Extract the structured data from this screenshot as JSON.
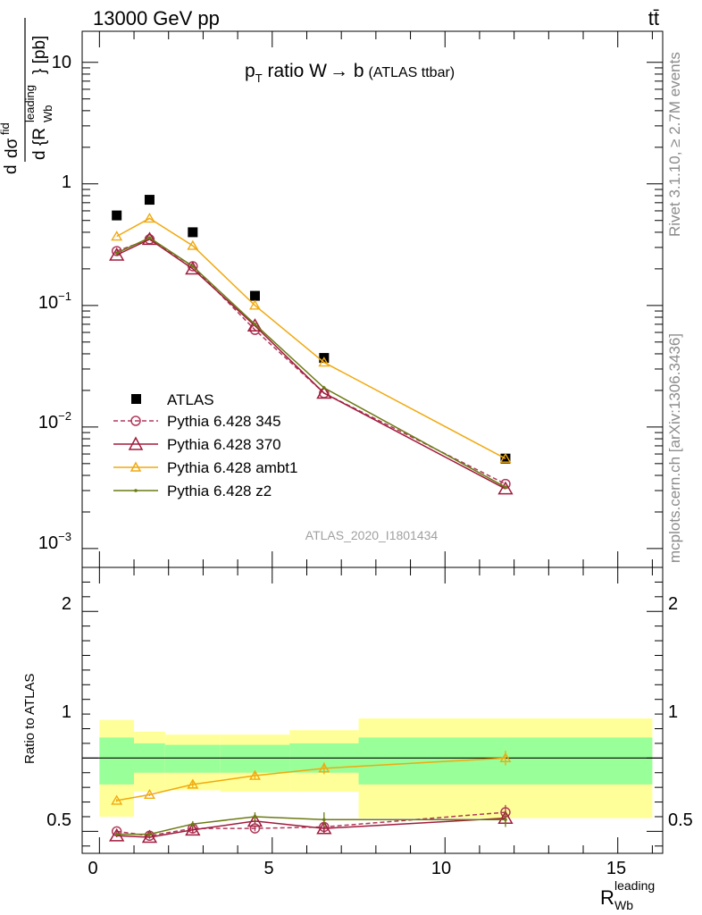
{
  "header": {
    "left": "13000 GeV pp",
    "right": "tt̄"
  },
  "side_text": {
    "rivet": "Rivet 3.1.10, ≥ 2.7M events",
    "mcplots": "mcplots.cern.ch [arXiv:1306.3436]"
  },
  "colors": {
    "atlas": "#000000",
    "p345": "#b03a5b",
    "p370": "#a01c3c",
    "ambt1": "#f0a90f",
    "z2": "#6b7a12",
    "band_inner": "#99ff99",
    "band_outer": "#ffff99"
  },
  "chart_data": [
    {
      "type": "line",
      "title": "p_T ratio W → b (ATLAS ttbar)",
      "title_parts": {
        "p": "p",
        "sub": "T",
        "main": " ratio W",
        "arrow": "→",
        "b": " b",
        "note": "(ATLAS ttbar)"
      },
      "ylabel": "d σ^fid / d {R_Wb^leading} [pb]",
      "ylabel_parts": {
        "d": "d",
        "sigma": "dσ",
        "fid": "fid",
        "den": "d {R",
        "leading": "leading",
        "wb": "Wb",
        "close": "} [pb]"
      },
      "yscale": "log",
      "ylim": [
        0.0007,
        18
      ],
      "xlim": [
        -0.5,
        16.3
      ],
      "yticks": [
        0.001,
        0.01,
        0.1,
        1,
        10
      ],
      "ytick_labels": [
        {
          "base": "10",
          "exp": "−3"
        },
        {
          "base": "10",
          "exp": "−2"
        },
        {
          "base": "10",
          "exp": "−1"
        },
        {
          "base": "1",
          "exp": ""
        },
        {
          "base": "10",
          "exp": ""
        }
      ],
      "watermark": "ATLAS_2020_I1801434",
      "legend_position": "lower-left",
      "x": [
        0.5,
        1.45,
        2.7,
        4.5,
        6.5,
        11.75
      ],
      "series": [
        {
          "name": "ATLAS",
          "values": [
            0.55,
            0.74,
            0.4,
            0.12,
            0.037,
            0.0055
          ],
          "style": "square"
        },
        {
          "name": "Pythia 6.428 345",
          "values": [
            0.28,
            0.35,
            0.21,
            0.063,
            0.019,
            0.0034
          ],
          "style": "circle-dashed"
        },
        {
          "name": "Pythia 6.428 370",
          "values": [
            0.26,
            0.35,
            0.2,
            0.068,
            0.019,
            0.0031
          ],
          "style": "triangle"
        },
        {
          "name": "Pythia 6.428 ambt1",
          "values": [
            0.37,
            0.52,
            0.31,
            0.1,
            0.034,
            0.0055
          ],
          "style": "triangle-open-small"
        },
        {
          "name": "Pythia 6.428 z2",
          "values": [
            0.27,
            0.36,
            0.21,
            0.07,
            0.021,
            0.0032
          ],
          "style": "dot"
        }
      ]
    },
    {
      "type": "line",
      "ylabel": "Ratio to ATLAS",
      "xlabel": "R_Wb^leading",
      "xlabel_parts": {
        "r": "R",
        "sup": "leading",
        "sub": "Wb"
      },
      "ylim": [
        0.35,
        2.3
      ],
      "xlim": [
        -0.5,
        16.3
      ],
      "yticks": [
        0.5,
        1,
        2
      ],
      "ytick_labels": [
        "0.5",
        "1",
        "2"
      ],
      "xticks": [
        0,
        5,
        10,
        15
      ],
      "xtick_labels": [
        "0",
        "5",
        "10",
        "15"
      ],
      "bands": [
        {
          "x0": 0,
          "x1": 1,
          "inner": [
            0.82,
            1.14
          ],
          "outer": [
            0.6,
            1.26
          ]
        },
        {
          "x0": 1,
          "x1": 1.9,
          "inner": [
            0.9,
            1.1
          ],
          "outer": [
            0.77,
            1.18
          ]
        },
        {
          "x0": 1.9,
          "x1": 3.5,
          "inner": [
            0.9,
            1.09
          ],
          "outer": [
            0.78,
            1.16
          ]
        },
        {
          "x0": 3.5,
          "x1": 5.5,
          "inner": [
            0.9,
            1.09
          ],
          "outer": [
            0.77,
            1.16
          ]
        },
        {
          "x0": 5.5,
          "x1": 7.5,
          "inner": [
            0.9,
            1.1
          ],
          "outer": [
            0.77,
            1.19
          ]
        },
        {
          "x0": 7.5,
          "x1": 16,
          "inner": [
            0.82,
            1.14
          ],
          "outer": [
            0.59,
            1.27
          ]
        }
      ],
      "x": [
        0.5,
        1.45,
        2.7,
        4.5,
        6.5,
        11.75
      ],
      "series": [
        {
          "name": "Pythia 6.428 345",
          "values": [
            0.5,
            0.47,
            0.52,
            0.52,
            0.53,
            0.63
          ],
          "errors": [
            0.01,
            0.01,
            0.01,
            0.02,
            0.03,
            0.05
          ]
        },
        {
          "name": "Pythia 6.428 370",
          "values": [
            0.47,
            0.46,
            0.51,
            0.57,
            0.52,
            0.59
          ],
          "errors": [
            0.01,
            0.01,
            0.02,
            0.02,
            0.03,
            0.04
          ]
        },
        {
          "name": "Pythia 6.428 ambt1",
          "values": [
            0.71,
            0.75,
            0.82,
            0.88,
            0.93,
            1.0
          ],
          "errors": [
            0.01,
            0.01,
            0.02,
            0.02,
            0.04,
            0.05
          ]
        },
        {
          "name": "Pythia 6.428 z2",
          "values": [
            0.48,
            0.48,
            0.55,
            0.6,
            0.58,
            0.58
          ],
          "errors": [
            0.01,
            0.02,
            0.02,
            0.03,
            0.05,
            0.05
          ]
        }
      ]
    }
  ]
}
